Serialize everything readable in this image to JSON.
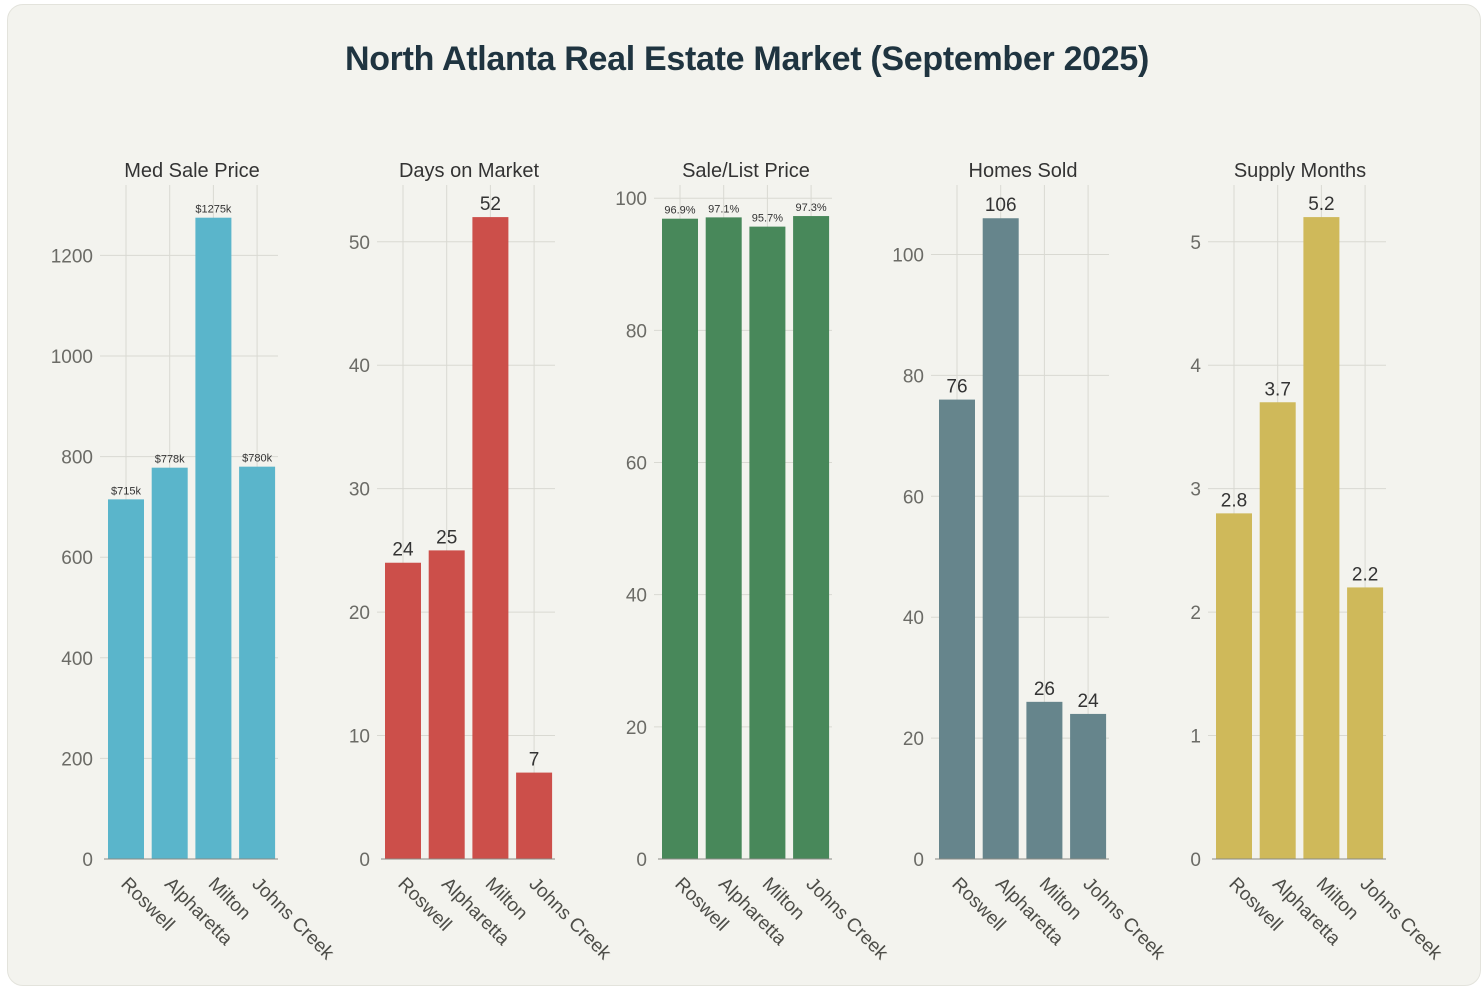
{
  "title": "North Atlanta Real Estate Market (September 2025)",
  "colors": {
    "background": "#f3f3ee",
    "title": "#1f3440",
    "med_sale_price": "#5ab5cb",
    "days_on_market": "#cc4f4a",
    "sale_list_price": "#48885a",
    "homes_sold": "#66858c",
    "supply_months": "#cfb95a"
  },
  "chart_data": [
    {
      "type": "bar",
      "title": "Med Sale Price",
      "categories": [
        "Roswell",
        "Alpharetta",
        "Milton",
        "Johns Creek"
      ],
      "values": [
        715,
        778,
        1275,
        780
      ],
      "labels": [
        "$715k",
        "$778k",
        "$1275k",
        "$780k"
      ],
      "ylim": [
        0,
        1340
      ],
      "yticks": [
        0,
        200,
        400,
        600,
        800,
        1000,
        1200
      ],
      "color_key": "med_sale_price"
    },
    {
      "type": "bar",
      "title": "Days on Market",
      "categories": [
        "Roswell",
        "Alpharetta",
        "Milton",
        "Johns Creek"
      ],
      "values": [
        24,
        25,
        52,
        7
      ],
      "labels": [
        "24",
        "25",
        "52",
        "7"
      ],
      "ylim": [
        0,
        54.6
      ],
      "yticks": [
        0,
        10,
        20,
        30,
        40,
        50
      ],
      "color_key": "days_on_market"
    },
    {
      "type": "bar",
      "title": "Sale/List Price",
      "categories": [
        "Roswell",
        "Alpharetta",
        "Milton",
        "Johns Creek"
      ],
      "values": [
        96.9,
        97.1,
        95.7,
        97.3
      ],
      "labels": [
        "96.9%",
        "97.1%",
        "95.7%",
        "97.3%"
      ],
      "ylim": [
        0,
        102
      ],
      "yticks": [
        0,
        20,
        40,
        60,
        80,
        100
      ],
      "color_key": "sale_list_price"
    },
    {
      "type": "bar",
      "title": "Homes Sold",
      "categories": [
        "Roswell",
        "Alpharetta",
        "Milton",
        "Johns Creek"
      ],
      "values": [
        76,
        106,
        26,
        24
      ],
      "labels": [
        "76",
        "106",
        "26",
        "24"
      ],
      "ylim": [
        0,
        111.5
      ],
      "yticks": [
        0,
        20,
        40,
        60,
        80,
        100
      ],
      "color_key": "homes_sold"
    },
    {
      "type": "bar",
      "title": "Supply Months",
      "categories": [
        "Roswell",
        "Alpharetta",
        "Milton",
        "Johns Creek"
      ],
      "values": [
        2.8,
        3.7,
        5.2,
        2.2
      ],
      "labels": [
        "2.8",
        "3.7",
        "5.2",
        "2.2"
      ],
      "ylim": [
        0,
        5.46
      ],
      "yticks": [
        0,
        1,
        2,
        3,
        4,
        5
      ],
      "color_key": "supply_months"
    }
  ]
}
